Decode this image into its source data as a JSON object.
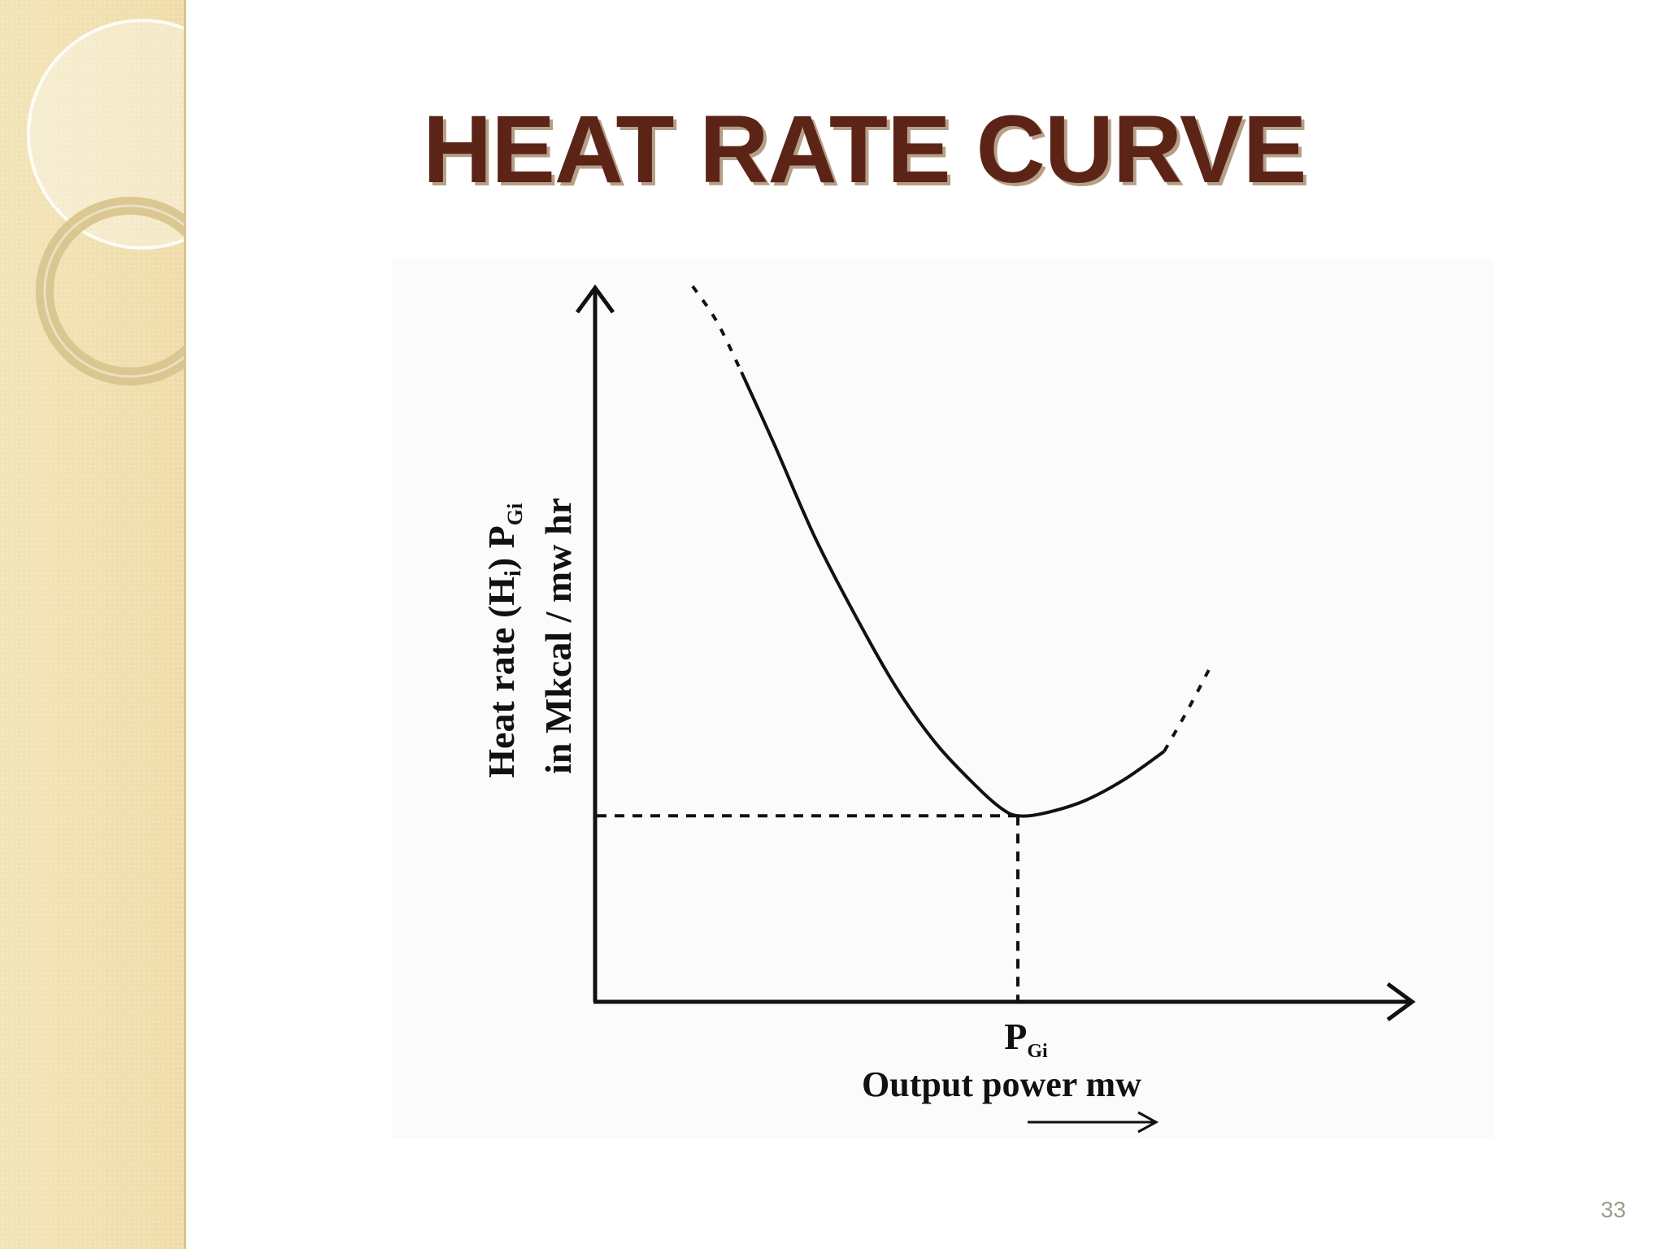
{
  "slide": {
    "title": "HEAT RATE CURVE",
    "page_number": "33"
  },
  "colors": {
    "title": "#5c2416",
    "title_shadow": "#b59f86",
    "side_panel": "#f1e0b0",
    "curve": "#111111"
  },
  "chart_data": {
    "type": "line",
    "title": "",
    "xlabel": "Output power mw",
    "ylabel_line1": "Heat rate (H",
    "ylabel_sub_i": "i",
    "ylabel_line1_rest": ") P",
    "ylabel_sub_gi": "Gi",
    "ylabel_line2": "in Mkcal / mw hr",
    "x_marker": {
      "main": "P",
      "sub": "Gi"
    },
    "description_of_values": "schematic curve, no numeric scale printed",
    "xlim": [
      0,
      100
    ],
    "ylim": [
      0,
      100
    ],
    "min_point": {
      "x": 52,
      "y": 26
    },
    "series": [
      {
        "solid": [
          [
            18,
            88
          ],
          [
            22,
            78
          ],
          [
            27,
            65
          ],
          [
            32,
            54
          ],
          [
            37,
            44
          ],
          [
            42,
            36
          ],
          [
            47,
            30
          ],
          [
            50,
            27
          ],
          [
            52,
            26
          ],
          [
            55,
            26.3
          ],
          [
            60,
            28
          ],
          [
            65,
            31
          ],
          [
            70,
            35
          ]
        ],
        "dashed_left": [
          [
            12,
            100
          ],
          [
            15,
            95
          ],
          [
            18,
            88
          ]
        ],
        "dashed_right": [
          [
            70,
            35
          ],
          [
            73,
            41
          ],
          [
            76,
            47.5
          ]
        ]
      }
    ],
    "grid": false,
    "legend": "none"
  }
}
